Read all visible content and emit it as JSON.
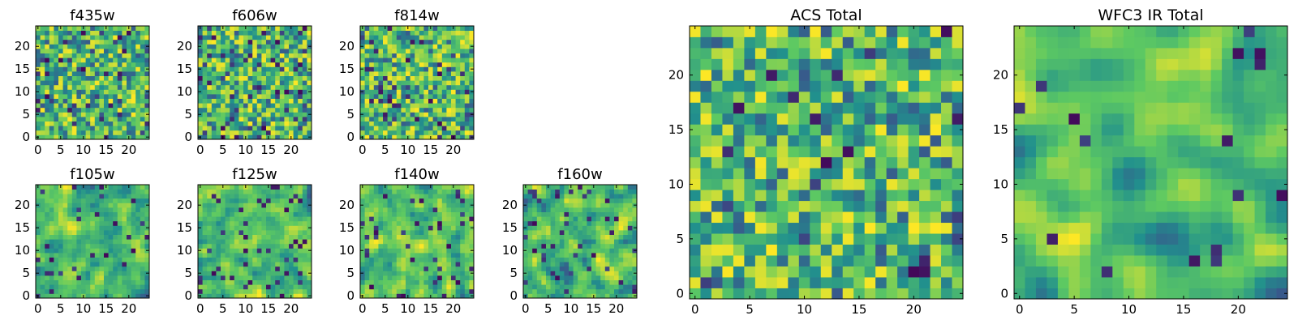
{
  "chart_data": [
    {
      "type": "heatmap",
      "title": "f435w",
      "xlabel": "",
      "ylabel": "",
      "size": 25,
      "xlim": [
        0,
        24
      ],
      "ylim": [
        0,
        24
      ],
      "xticks": [
        0,
        5,
        10,
        15,
        20
      ],
      "yticks": [
        0,
        5,
        10,
        15,
        20
      ],
      "seed": 11,
      "smooth": 0,
      "extremes": 0.07
    },
    {
      "type": "heatmap",
      "title": "f606w",
      "xlabel": "",
      "ylabel": "",
      "size": 25,
      "xlim": [
        0,
        24
      ],
      "ylim": [
        0,
        24
      ],
      "xticks": [
        0,
        5,
        10,
        15,
        20
      ],
      "yticks": [
        0,
        5,
        10,
        15,
        20
      ],
      "seed": 23,
      "smooth": 0,
      "extremes": 0.07
    },
    {
      "type": "heatmap",
      "title": "f814w",
      "xlabel": "",
      "ylabel": "",
      "size": 25,
      "xlim": [
        0,
        24
      ],
      "ylim": [
        0,
        24
      ],
      "xticks": [
        0,
        5,
        10,
        15,
        20
      ],
      "yticks": [
        0,
        5,
        10,
        15,
        20
      ],
      "seed": 37,
      "smooth": 0,
      "extremes": 0.06
    },
    {
      "type": "heatmap",
      "title": "f105w",
      "xlabel": "",
      "ylabel": "",
      "size": 25,
      "xlim": [
        0,
        24
      ],
      "ylim": [
        0,
        24
      ],
      "xticks": [
        0,
        5,
        10,
        15,
        20
      ],
      "yticks": [
        0,
        5,
        10,
        15,
        20
      ],
      "seed": 41,
      "smooth": 1,
      "extremes": 0.06
    },
    {
      "type": "heatmap",
      "title": "f125w",
      "xlabel": "",
      "ylabel": "",
      "size": 25,
      "xlim": [
        0,
        24
      ],
      "ylim": [
        0,
        24
      ],
      "xticks": [
        0,
        5,
        10,
        15,
        20
      ],
      "yticks": [
        0,
        5,
        10,
        15,
        20
      ],
      "seed": 53,
      "smooth": 1,
      "extremes": 0.06
    },
    {
      "type": "heatmap",
      "title": "f140w",
      "xlabel": "",
      "ylabel": "",
      "size": 25,
      "xlim": [
        0,
        24
      ],
      "ylim": [
        0,
        24
      ],
      "xticks": [
        0,
        5,
        10,
        15,
        20
      ],
      "yticks": [
        0,
        5,
        10,
        15,
        20
      ],
      "seed": 67,
      "smooth": 1,
      "extremes": 0.06
    },
    {
      "type": "heatmap",
      "title": "f160w",
      "xlabel": "",
      "ylabel": "",
      "size": 25,
      "xlim": [
        0,
        24
      ],
      "ylim": [
        0,
        24
      ],
      "xticks": [
        0,
        5,
        10,
        15,
        20
      ],
      "yticks": [
        0,
        5,
        10,
        15,
        20
      ],
      "seed": 79,
      "smooth": 1,
      "extremes": 0.06
    },
    {
      "type": "heatmap",
      "title": "ACS Total",
      "xlabel": "",
      "ylabel": "",
      "size": 25,
      "xlim": [
        0,
        24
      ],
      "ylim": [
        0,
        24
      ],
      "xticks": [
        0,
        5,
        10,
        15,
        20
      ],
      "yticks": [
        0,
        5,
        10,
        15,
        20
      ],
      "seed": 97,
      "smooth": 0,
      "extremes": 0.035
    },
    {
      "type": "heatmap",
      "title": "WFC3 IR Total",
      "xlabel": "",
      "ylabel": "",
      "size": 25,
      "xlim": [
        0,
        24
      ],
      "ylim": [
        0,
        24
      ],
      "xticks": [
        0,
        5,
        10,
        15,
        20
      ],
      "yticks": [
        0,
        5,
        10,
        15,
        20
      ],
      "seed": 131,
      "smooth": 2,
      "extremes": 0.03
    }
  ],
  "colormap": [
    "#440154",
    "#3b528b",
    "#21908d",
    "#5dc962",
    "#fde725"
  ],
  "colors": {
    "axes_edge": "#000000",
    "background": "#ffffff"
  }
}
